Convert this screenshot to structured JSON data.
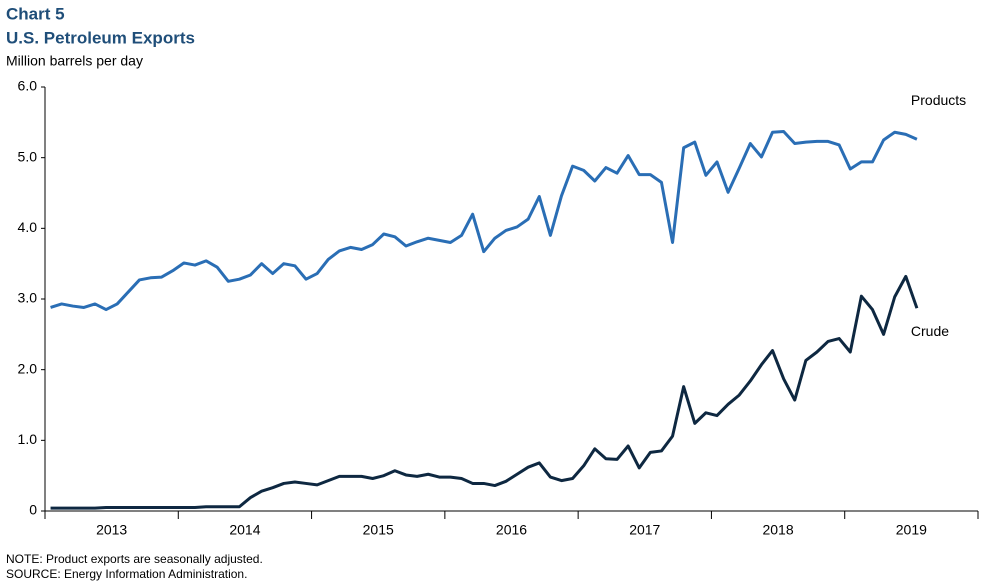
{
  "chart_data": {
    "type": "line",
    "title": "Chart 5",
    "subtitle": "U.S. Petroleum Exports",
    "y_label": "Million barrels per day",
    "notes": [
      "NOTE: Product exports are seasonally adjusted.",
      "SOURCE: Energy Information  Administration."
    ],
    "categories": [
      null,
      null,
      null,
      null,
      null,
      "2013",
      null,
      null,
      null,
      null,
      null,
      null,
      null,
      null,
      null,
      null,
      null,
      "2014",
      null,
      null,
      null,
      null,
      null,
      null,
      null,
      null,
      null,
      null,
      null,
      "2015",
      null,
      null,
      null,
      null,
      null,
      null,
      null,
      null,
      null,
      null,
      null,
      "2016",
      null,
      null,
      null,
      null,
      null,
      null,
      null,
      null,
      null,
      null,
      null,
      "2017",
      null,
      null,
      null,
      null,
      null,
      null,
      null,
      null,
      null,
      null,
      null,
      "2018",
      null,
      null,
      null,
      null,
      null,
      null,
      null,
      null,
      null,
      null,
      null,
      "2019",
      null
    ],
    "series": [
      {
        "name": "Products",
        "color": "#2a6eb5",
        "values": [
          2.88,
          2.93,
          2.9,
          2.88,
          2.93,
          2.85,
          2.93,
          3.1,
          3.27,
          3.3,
          3.31,
          3.4,
          3.51,
          3.48,
          3.54,
          3.45,
          3.25,
          3.28,
          3.34,
          3.5,
          3.36,
          3.5,
          3.47,
          3.28,
          3.36,
          3.56,
          3.68,
          3.73,
          3.7,
          3.77,
          3.92,
          3.88,
          3.75,
          3.81,
          3.86,
          3.83,
          3.8,
          3.9,
          4.2,
          3.67,
          3.86,
          3.97,
          4.02,
          4.13,
          4.45,
          3.9,
          4.46,
          4.88,
          4.82,
          4.67,
          4.86,
          4.78,
          5.03,
          4.76,
          4.76,
          4.65,
          3.8,
          5.14,
          5.22,
          4.75,
          4.94,
          4.51,
          4.85,
          5.2,
          5.01,
          5.36,
          5.37,
          5.2,
          5.22,
          5.23,
          5.23,
          5.18,
          4.84,
          4.94,
          4.94,
          5.25,
          5.36,
          5.33,
          5.26
        ]
      },
      {
        "name": "Crude",
        "color": "#0e2841",
        "values": [
          0.04,
          0.04,
          0.04,
          0.04,
          0.04,
          0.05,
          0.05,
          0.05,
          0.05,
          0.05,
          0.05,
          0.05,
          0.05,
          0.05,
          0.06,
          0.06,
          0.06,
          0.06,
          0.19,
          0.28,
          0.33,
          0.39,
          0.41,
          0.39,
          0.37,
          0.43,
          0.49,
          0.49,
          0.49,
          0.46,
          0.5,
          0.57,
          0.51,
          0.49,
          0.52,
          0.48,
          0.48,
          0.46,
          0.39,
          0.39,
          0.36,
          0.42,
          0.52,
          0.62,
          0.68,
          0.48,
          0.43,
          0.46,
          0.64,
          0.88,
          0.74,
          0.73,
          0.92,
          0.61,
          0.83,
          0.85,
          1.06,
          1.76,
          1.24,
          1.39,
          1.35,
          1.51,
          1.64,
          1.84,
          2.07,
          2.27,
          1.87,
          1.57,
          2.13,
          2.25,
          2.4,
          2.44,
          2.25,
          3.04,
          2.85,
          2.5,
          3.03,
          3.32,
          2.87
        ]
      }
    ],
    "ylim": [
      0,
      6
    ],
    "yticks": [
      0,
      {
        "value": 1,
        "label": "1.0"
      },
      {
        "value": 2,
        "label": "2.0"
      },
      {
        "value": 3,
        "label": "3.0"
      },
      {
        "value": 4,
        "label": "4.0"
      },
      {
        "value": 5,
        "label": "5.0"
      },
      {
        "value": 6,
        "label": "6.0"
      }
    ],
    "grid": false
  }
}
